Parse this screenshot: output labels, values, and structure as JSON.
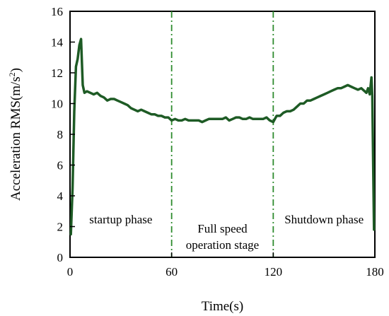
{
  "chart_data": {
    "type": "line",
    "xlabel": "Time(s)",
    "ylabel_main": "Acceleration RMS(m/s",
    "ylabel_sup": "2",
    "ylabel_close": ")",
    "xlim": [
      0,
      180
    ],
    "ylim": [
      0,
      16
    ],
    "xticks": [
      0,
      60,
      120,
      180
    ],
    "yticks": [
      0,
      2,
      4,
      6,
      8,
      10,
      12,
      14,
      16
    ],
    "grid": false,
    "line_color": "#1e5b25",
    "divider_color": "#2e8b2e",
    "dividers": [
      60,
      120
    ],
    "phase_labels": [
      {
        "x": 30,
        "y": 2.2,
        "lines": [
          "startup phase"
        ]
      },
      {
        "x": 90,
        "y": 1.6,
        "lines": [
          "Full speed",
          "operation stage"
        ]
      },
      {
        "x": 150,
        "y": 2.2,
        "lines": [
          "Shutdown phase"
        ]
      }
    ],
    "series": [
      {
        "x": [
          0.5,
          1.5,
          2.5,
          3.5,
          4.5,
          5.5,
          6.5,
          7.5,
          8.5,
          10,
          12,
          14,
          16,
          18,
          20,
          22,
          24,
          26,
          28,
          30,
          32,
          34,
          36,
          38,
          40,
          42,
          44,
          46,
          48,
          50,
          52,
          54,
          56,
          58,
          60,
          62,
          64,
          66,
          68,
          70,
          72,
          74,
          76,
          78,
          80,
          82,
          84,
          86,
          88,
          90,
          92,
          94,
          96,
          98,
          100,
          102,
          104,
          106,
          108,
          110,
          112,
          114,
          116,
          118,
          120,
          122,
          124,
          126,
          128,
          130,
          132,
          134,
          136,
          138,
          140,
          142,
          144,
          146,
          148,
          150,
          152,
          154,
          156,
          158,
          160,
          162,
          164,
          166,
          168,
          170,
          172,
          174,
          175,
          176,
          177,
          178,
          178.5,
          179.5
        ],
        "y": [
          1.5,
          4.5,
          9.5,
          12.4,
          12.9,
          13.8,
          14.2,
          11.2,
          10.7,
          10.8,
          10.7,
          10.6,
          10.7,
          10.5,
          10.4,
          10.2,
          10.3,
          10.3,
          10.2,
          10.1,
          10.0,
          9.9,
          9.7,
          9.6,
          9.5,
          9.6,
          9.5,
          9.4,
          9.3,
          9.3,
          9.2,
          9.2,
          9.1,
          9.1,
          8.9,
          9.0,
          8.9,
          8.9,
          9.0,
          8.9,
          8.9,
          8.9,
          8.9,
          8.8,
          8.9,
          9.0,
          9.0,
          9.0,
          9.0,
          9.0,
          9.1,
          8.9,
          9.0,
          9.1,
          9.1,
          9.0,
          9.0,
          9.1,
          9.0,
          9.0,
          9.0,
          9.0,
          9.1,
          8.9,
          8.8,
          9.2,
          9.2,
          9.4,
          9.5,
          9.5,
          9.6,
          9.8,
          10.0,
          10.0,
          10.2,
          10.2,
          10.3,
          10.4,
          10.5,
          10.6,
          10.7,
          10.8,
          10.9,
          11.0,
          11.0,
          11.1,
          11.2,
          11.1,
          11.0,
          10.9,
          11.0,
          10.8,
          10.7,
          11.0,
          10.6,
          11.7,
          10.5,
          1.8
        ]
      }
    ]
  }
}
